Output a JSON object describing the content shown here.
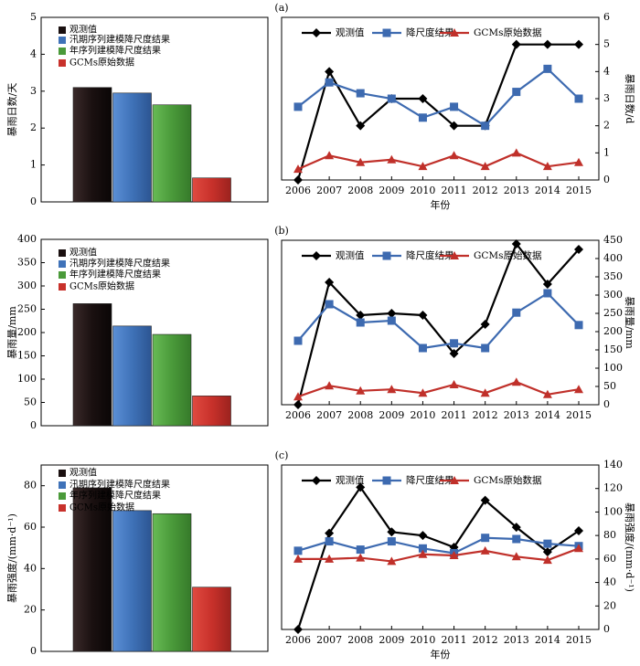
{
  "colors": {
    "observed": "#1a1010",
    "flood_season": "#3f72b8",
    "annual": "#4a9a3a",
    "gcm": "#c8312b",
    "line_observed": "#000000",
    "line_downscaled": "#3d6ab0",
    "line_gcm": "#c0302a"
  },
  "chart_data": [
    {
      "type": "bar",
      "ylabel": "暴雨日数/天",
      "ylim": [
        0,
        5
      ],
      "yticks": [
        0,
        1,
        2,
        3,
        4,
        5
      ],
      "series": [
        {
          "name": "观测值",
          "values": [
            3.1
          ]
        },
        {
          "name": "汛期序列建模降尺度结果",
          "values": [
            2.95
          ]
        },
        {
          "name": "年序列建模降尺度结果",
          "values": [
            2.63
          ]
        },
        {
          "name": "GCMs原始数据",
          "values": [
            0.65
          ]
        }
      ]
    },
    {
      "type": "line",
      "panel_label": "(a)",
      "xlabel": "年份",
      "ylabel": "暴雨日数/d",
      "x": [
        2006,
        2007,
        2008,
        2009,
        2010,
        2011,
        2012,
        2013,
        2014,
        2015
      ],
      "ylim": [
        0,
        6
      ],
      "yticks": [
        0,
        1,
        2,
        3,
        4,
        5,
        6
      ],
      "series": [
        {
          "name": "观测值",
          "values": [
            0,
            4,
            2,
            3,
            3,
            2,
            2,
            5,
            5,
            5
          ]
        },
        {
          "name": "降尺度结果",
          "values": [
            2.7,
            3.6,
            3.2,
            3.0,
            2.3,
            2.7,
            2.0,
            3.25,
            4.1,
            3.0
          ]
        },
        {
          "name": "GCMs原始数据",
          "values": [
            0.4,
            0.9,
            0.65,
            0.75,
            0.5,
            0.9,
            0.5,
            1.0,
            0.5,
            0.65
          ]
        }
      ]
    },
    {
      "type": "bar",
      "ylabel": "暴雨量/mm",
      "ylim": [
        0,
        400
      ],
      "yticks": [
        0,
        50,
        100,
        150,
        200,
        250,
        300,
        350,
        400
      ],
      "series": [
        {
          "name": "观测值",
          "values": [
            262
          ]
        },
        {
          "name": "汛期序列建模降尺度结果",
          "values": [
            214
          ]
        },
        {
          "name": "年序列建模降尺度结果",
          "values": [
            196
          ]
        },
        {
          "name": "GCMs原始数据",
          "values": [
            64
          ]
        }
      ]
    },
    {
      "type": "line",
      "panel_label": "(b)",
      "xlabel": "",
      "ylabel": "暴雨量/mm",
      "x": [
        2006,
        2007,
        2008,
        2009,
        2010,
        2011,
        2012,
        2013,
        2014,
        2015
      ],
      "ylim": [
        0,
        450
      ],
      "yticks": [
        0,
        50,
        100,
        150,
        200,
        250,
        300,
        350,
        400,
        450
      ],
      "series": [
        {
          "name": "观测值",
          "values": [
            0,
            335,
            245,
            250,
            245,
            140,
            220,
            440,
            330,
            425
          ]
        },
        {
          "name": "降尺度结果",
          "values": [
            175,
            275,
            225,
            230,
            155,
            168,
            155,
            252,
            305,
            218
          ]
        },
        {
          "name": "GCMs原始数据",
          "values": [
            22,
            52,
            38,
            42,
            32,
            55,
            32,
            62,
            28,
            42
          ]
        }
      ]
    },
    {
      "type": "bar",
      "ylabel": "暴雨强度/(mm·d⁻¹)",
      "ylim": [
        0,
        90
      ],
      "yticks": [
        0,
        20,
        40,
        60,
        80
      ],
      "series": [
        {
          "name": "观测值",
          "values": [
            79
          ]
        },
        {
          "name": "汛期序列建模降尺度结果",
          "values": [
            68
          ]
        },
        {
          "name": "年序列建模降尺度结果",
          "values": [
            66.5
          ]
        },
        {
          "name": "GCMs原始数据",
          "values": [
            31
          ]
        }
      ]
    },
    {
      "type": "line",
      "panel_label": "(c)",
      "xlabel": "年份",
      "ylabel": "暴雨强度/(mm·d⁻¹)",
      "x": [
        2006,
        2007,
        2008,
        2009,
        2010,
        2011,
        2012,
        2013,
        2014,
        2015
      ],
      "ylim": [
        0,
        140
      ],
      "yticks": [
        0,
        20,
        40,
        60,
        80,
        100,
        120,
        140
      ],
      "series": [
        {
          "name": "观测值",
          "values": [
            0,
            82,
            121,
            83,
            80,
            70,
            110,
            87,
            66,
            84
          ]
        },
        {
          "name": "降尺度结果",
          "values": [
            67,
            75,
            68,
            75,
            69,
            65,
            78,
            77,
            73,
            71
          ]
        },
        {
          "name": "GCMs原始数据",
          "values": [
            60,
            60,
            61,
            58,
            64,
            63,
            67,
            62,
            59,
            69
          ]
        }
      ]
    }
  ]
}
